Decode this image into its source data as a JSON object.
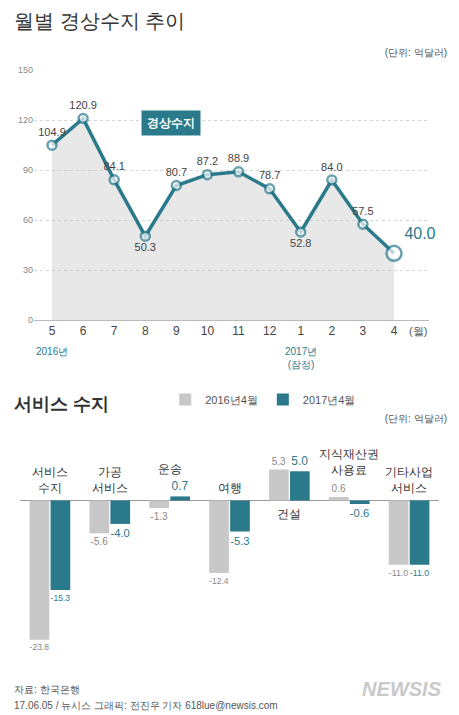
{
  "chart_data": [
    {
      "type": "line",
      "title": "월별 경상수지 추이",
      "subtitle": "(단위: 억달러)",
      "categories": [
        "5",
        "6",
        "7",
        "8",
        "9",
        "10",
        "11",
        "12",
        "1",
        "2",
        "3",
        "4"
      ],
      "series": [
        {
          "name": "경상수지",
          "color": "#2a7a8c",
          "marker": "circle",
          "values": [
            104.9,
            120.9,
            84.1,
            50.3,
            80.7,
            87.2,
            88.9,
            78.7,
            52.8,
            84.0,
            57.5,
            40.0
          ],
          "value_labels": [
            "104.9",
            "120.9",
            "84.1",
            "50.3",
            "80.7",
            "87.2",
            "88.9",
            "78.7",
            "52.8",
            "84.0",
            "57.5",
            "40.0"
          ]
        }
      ],
      "xlabel": "(월)",
      "annotations": [
        {
          "text": "2016년",
          "category": "5"
        },
        {
          "text": "2017년\n(잠정)",
          "category": "1"
        }
      ],
      "ylim": [
        0,
        150
      ],
      "yticks": [
        0,
        30,
        60,
        90,
        120,
        150
      ],
      "grid": true,
      "data_labels": true
    },
    {
      "type": "bar",
      "title": "서비스 수지",
      "subtitle": "(단위: 억달러)",
      "categories": [
        "서비스\n수지",
        "가공\n서비스",
        "운송",
        "여행",
        "건설",
        "지식재산권\n사용료",
        "기타사업\n서비스"
      ],
      "series": [
        {
          "name": "2016년4월",
          "color": "#c8c8c8",
          "values": [
            -23.8,
            -5.6,
            -1.3,
            -12.4,
            5.3,
            0.6,
            -11.0
          ],
          "value_labels": [
            "-23.8",
            "-5.6",
            "-1.3",
            "-12.4",
            "5.3",
            "0.6",
            "-11.0"
          ]
        },
        {
          "name": "2017년4월",
          "color": "#2a7a8c",
          "values": [
            -15.3,
            -4.0,
            0.7,
            -5.3,
            5.0,
            -0.6,
            -11.0
          ],
          "value_labels": [
            "-15.3",
            "-4.0",
            "0.7",
            "-5.3",
            "5.0",
            "-0.6",
            "-11.0"
          ]
        }
      ],
      "legend": "top",
      "grid": false,
      "tick_labels": false,
      "data_labels": true
    }
  ],
  "footer": {
    "source": "자료: 한국은행",
    "credit": "17.06.05 / 뉴시스 그래픽: 전진우 기자 618lue@newsis.com",
    "logo": "NEWSIS"
  }
}
